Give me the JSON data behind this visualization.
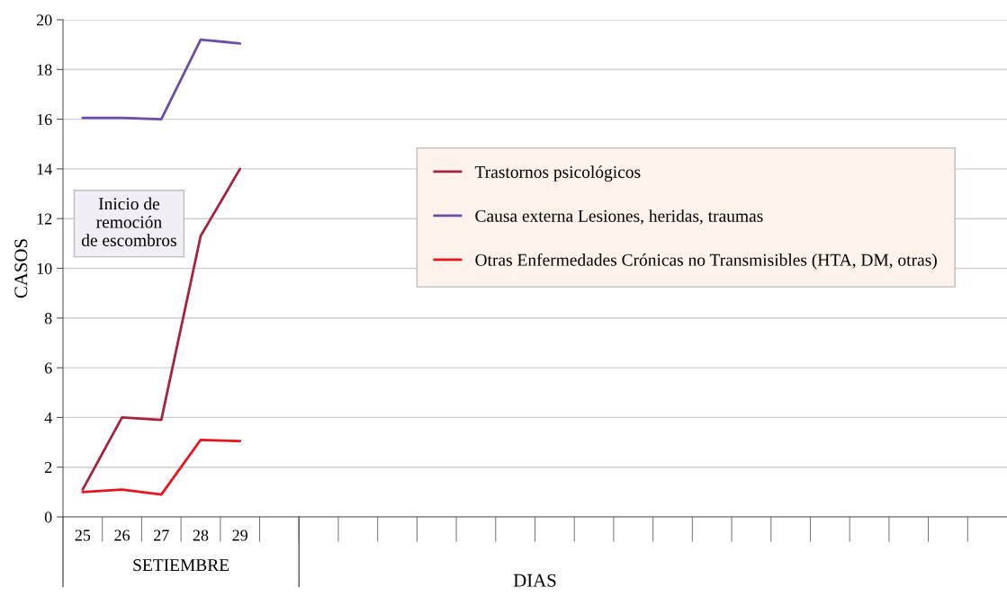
{
  "chart_data": {
    "type": "line",
    "xlabel": "DIAS",
    "ylabel": "CASOS",
    "categories": [
      "25",
      "26",
      "27",
      "28",
      "29",
      null,
      null,
      null,
      null,
      null,
      null,
      null,
      null,
      null,
      null,
      null,
      null,
      null,
      null,
      null,
      null,
      null,
      null,
      null
    ],
    "series": [
      {
        "name": "Trastornos psicológicos",
        "color": "#a8223f",
        "values": [
          1.1,
          4.0,
          3.9,
          11.3,
          14.0,
          null,
          null,
          null,
          null,
          null,
          null,
          null,
          null,
          null,
          null,
          null,
          null,
          null,
          null,
          null,
          null,
          null,
          null,
          null
        ]
      },
      {
        "name": "Causa externa Lesiones, heridas, traumas",
        "color": "#6a4ea8",
        "values": [
          16.05,
          16.05,
          16.0,
          19.2,
          19.05,
          null,
          null,
          null,
          null,
          null,
          null,
          null,
          null,
          null,
          null,
          null,
          null,
          null,
          null,
          null,
          null,
          null,
          null,
          null
        ]
      },
      {
        "name": "Otras Enfermedades Crónicas no Transmisibles (HTA, DM, otras)",
        "color": "#e8141e",
        "values": [
          1.0,
          1.1,
          0.9,
          3.1,
          3.05,
          null,
          null,
          null,
          null,
          null,
          null,
          null,
          null,
          null,
          null,
          null,
          null,
          null,
          null,
          null,
          null,
          null,
          null,
          null
        ]
      }
    ],
    "ylim": [
      0,
      20
    ],
    "yticks": [
      0,
      2,
      4,
      6,
      8,
      10,
      12,
      14,
      16,
      18,
      20
    ],
    "grid": "y",
    "legend": "right",
    "marker": "none",
    "line_style": "solid",
    "annotations": [
      "Inicio de\nremoción\nde escombros",
      "SETIEMBRE"
    ]
  }
}
